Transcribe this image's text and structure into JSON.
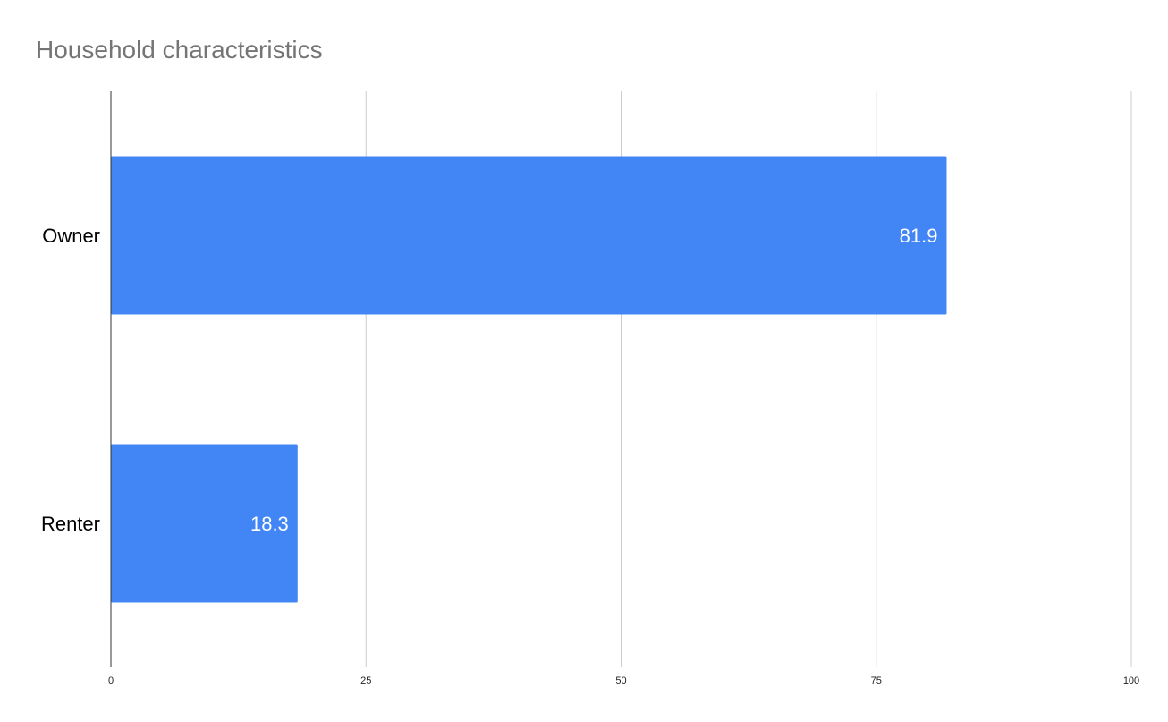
{
  "chart_data": {
    "type": "bar",
    "orientation": "horizontal",
    "title": "Household characteristics",
    "xlabel": "",
    "ylabel": "",
    "categories": [
      "Owner",
      "Renter"
    ],
    "values": [
      81.9,
      18.3
    ],
    "data_labels": [
      "81.9",
      "18.3"
    ],
    "xlim": [
      0,
      100
    ],
    "x_ticks": [
      0,
      25,
      50,
      75,
      100
    ],
    "x_tick_labels": [
      "0",
      "25",
      "50",
      "75",
      "100"
    ],
    "grid": "vertical",
    "legend": "none",
    "colors": {
      "bar": "#4285f4",
      "grid": "#cccccc",
      "axis": "#333333",
      "title": "#757575",
      "data_label": "#ffffff"
    }
  }
}
